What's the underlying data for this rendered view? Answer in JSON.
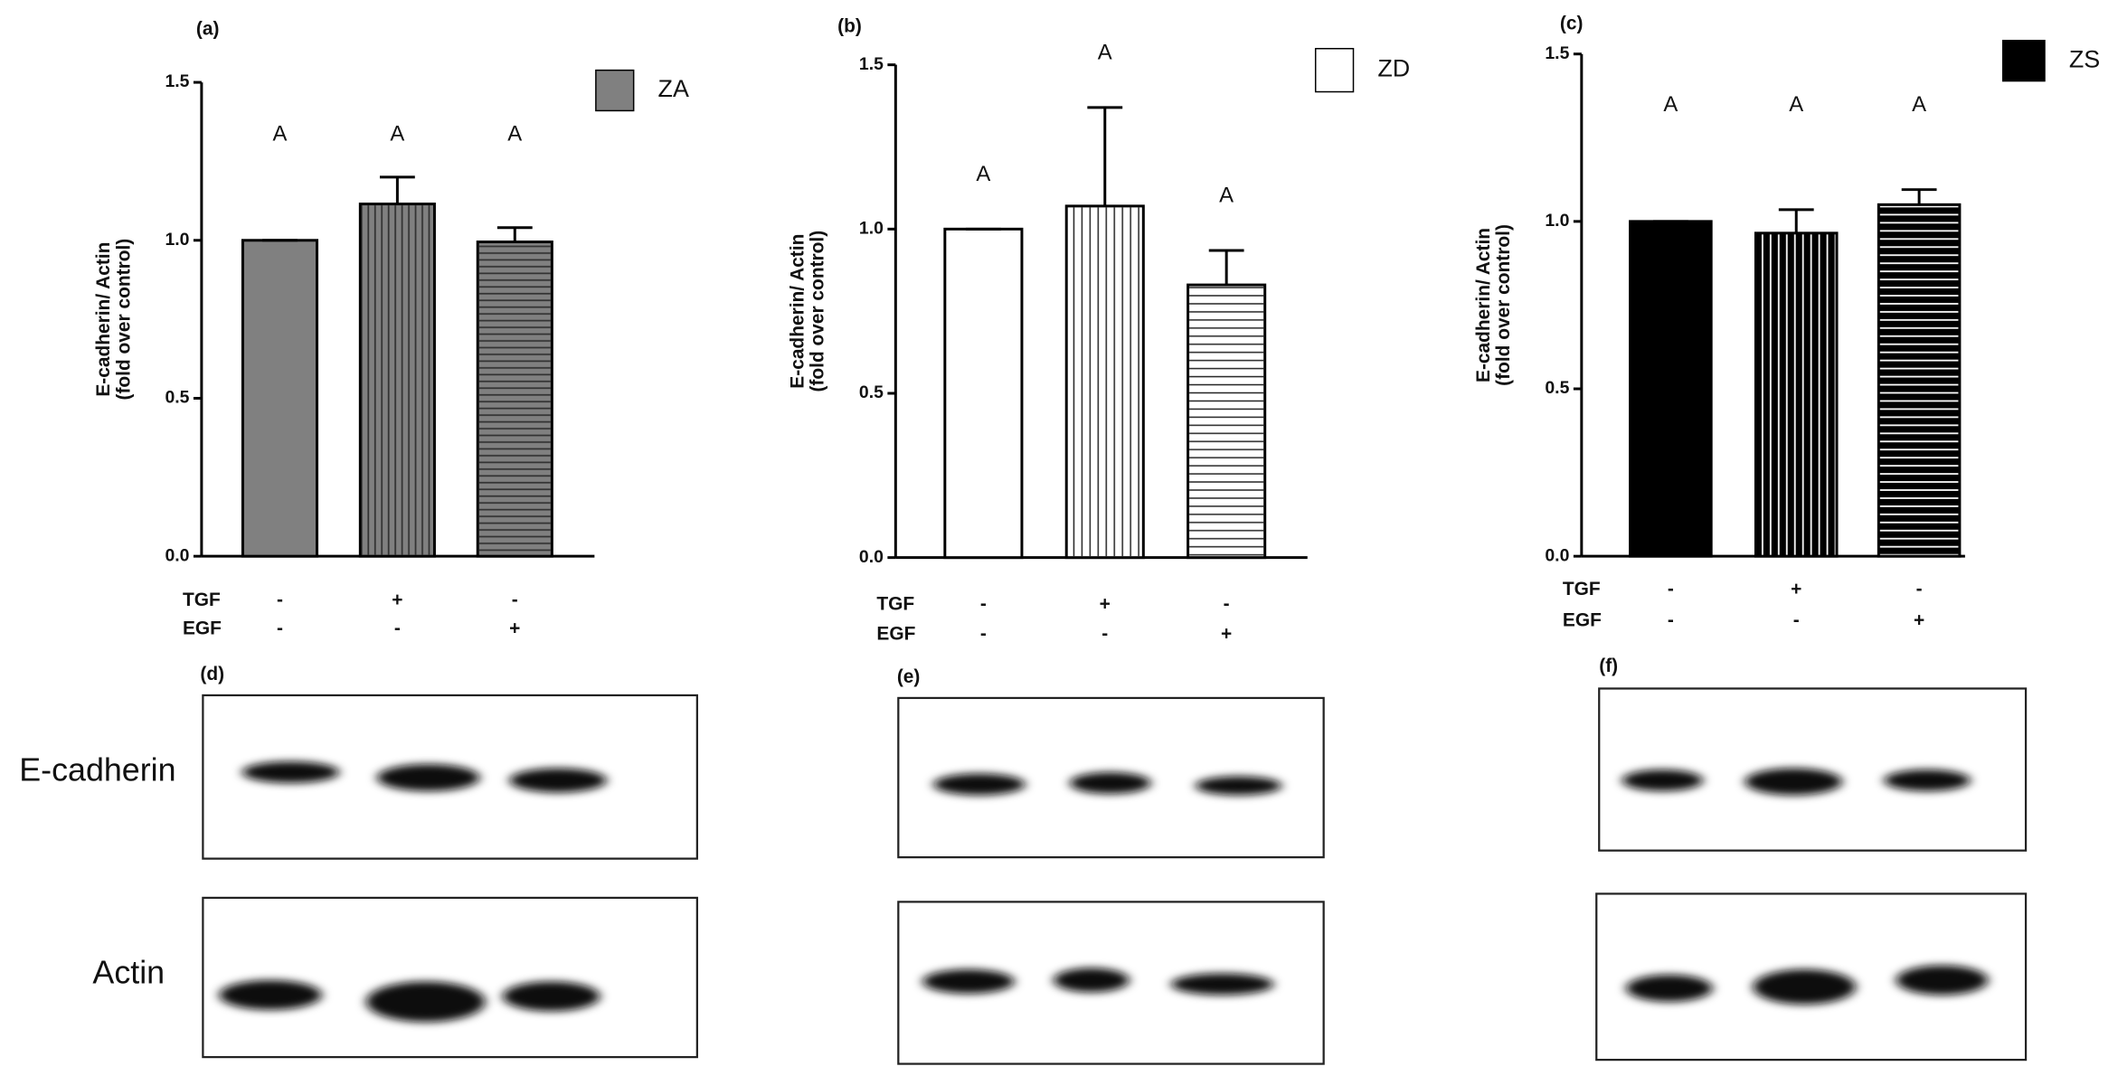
{
  "chart_data": [
    {
      "type": "bar",
      "panel": "(a)",
      "ylabel": [
        "E-cadherin/ Actin",
        "(fold over control)"
      ],
      "series": [
        {
          "name": "ZA",
          "color": "#808080",
          "values": [
            1.0,
            1.115,
            0.995
          ],
          "errors": [
            0,
            0.085,
            0.045
          ]
        }
      ],
      "annotations": [
        "A",
        "A",
        "A"
      ],
      "treatments": [
        {
          "name": "TGF",
          "signs": [
            "-",
            "+",
            "-"
          ]
        },
        {
          "name": "EGF",
          "signs": [
            "-",
            "-",
            "+"
          ]
        }
      ],
      "ylim": [
        0,
        1.5
      ],
      "yticks": [
        {
          "value": 0,
          "label": "0.0"
        },
        {
          "value": 0.5,
          "label": "0.5"
        },
        {
          "value": 1,
          "label": "1.0"
        },
        {
          "value": 1.5,
          "label": "1.5"
        }
      ]
    },
    {
      "type": "bar",
      "panel": "(b)",
      "ylabel": [
        "E-cadherin/ Actin",
        "(fold over control)"
      ],
      "series": [
        {
          "name": "ZD",
          "color": "#ffffff",
          "values": [
            1.0,
            1.07,
            0.83
          ],
          "errors": [
            0,
            0.3,
            0.105
          ]
        }
      ],
      "annotations": [
        "A",
        "A",
        "A"
      ],
      "treatments": [
        {
          "name": "TGF",
          "signs": [
            "-",
            "+",
            "-"
          ]
        },
        {
          "name": "EGF",
          "signs": [
            "-",
            "-",
            "+"
          ]
        }
      ],
      "ylim": [
        0,
        1.5
      ],
      "yticks": [
        {
          "value": 0,
          "label": "0.0"
        },
        {
          "value": 0.5,
          "label": "0.5"
        },
        {
          "value": 1,
          "label": "1.0"
        },
        {
          "value": 1.5,
          "label": "1.5"
        }
      ]
    },
    {
      "type": "bar",
      "panel": "(c)",
      "ylabel": [
        "E-cadherin/ Actin",
        "(fold over control)"
      ],
      "series": [
        {
          "name": "ZS",
          "color": "#000000",
          "values": [
            1.0,
            0.965,
            1.05
          ],
          "errors": [
            0,
            0.07,
            0.045
          ]
        }
      ],
      "annotations": [
        "A",
        "A",
        "A"
      ],
      "treatments": [
        {
          "name": "TGF",
          "signs": [
            "-",
            "+",
            "-"
          ]
        },
        {
          "name": "EGF",
          "signs": [
            "-",
            "-",
            "+"
          ]
        }
      ],
      "ylim": [
        0,
        1.5
      ],
      "yticks": [
        {
          "value": 0,
          "label": "0.0"
        },
        {
          "value": 0.5,
          "label": "0.5"
        },
        {
          "value": 1,
          "label": "1.0"
        },
        {
          "value": 1.5,
          "label": "1.5"
        }
      ]
    }
  ],
  "blots": {
    "panels": [
      "(d)",
      "(e)",
      "(f)"
    ],
    "rows": [
      "E-cadherin",
      "Actin"
    ]
  }
}
